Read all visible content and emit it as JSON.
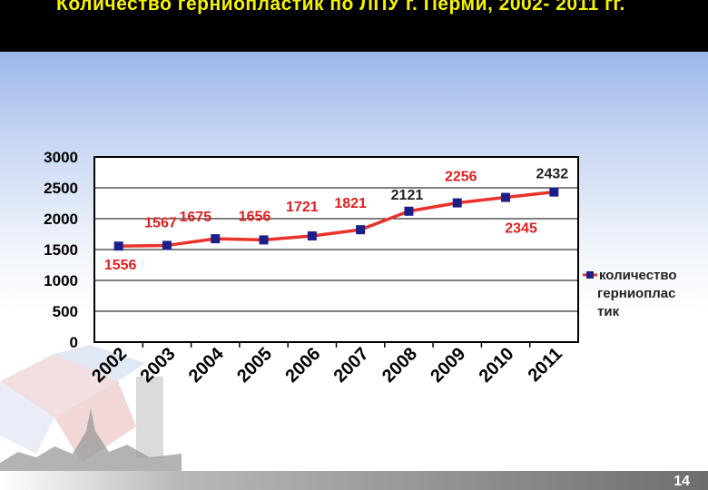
{
  "slide": {
    "title": "Количество герниопластик   по ЛПУ г. Перми, 2002- 2011 гг.",
    "page_number": "14",
    "accent_color": "#f5f200",
    "header_color": "#000000"
  },
  "chart_data": {
    "type": "line",
    "categories": [
      "2002",
      "2003",
      "2004",
      "2005",
      "2006",
      "2007",
      "2008",
      "2009",
      "2010",
      "2011"
    ],
    "series": [
      {
        "name": "количество герниопластик",
        "values": [
          1556,
          1567,
          1675,
          1656,
          1721,
          1821,
          2121,
          2256,
          2345,
          2432
        ],
        "line_color": "#e8322a",
        "marker_color": "#1a1f8a"
      }
    ],
    "data_labels": [
      {
        "text": "1556",
        "color": "#e02020"
      },
      {
        "text": "1567",
        "color": "#e02020"
      },
      {
        "text": "1675",
        "color": "#e02020"
      },
      {
        "text": "1656",
        "color": "#e02020"
      },
      {
        "text": "1721",
        "color": "#e02020"
      },
      {
        "text": "1821",
        "color": "#e02020"
      },
      {
        "text": "2121",
        "color": "#222222"
      },
      {
        "text": "2256",
        "color": "#e02020"
      },
      {
        "text": "2345",
        "color": "#e02020"
      },
      {
        "text": "2432",
        "color": "#222222"
      }
    ],
    "yticks": [
      "0",
      "500",
      "1000",
      "1500",
      "2000",
      "2500",
      "3000"
    ],
    "ylim": [
      0,
      3000
    ],
    "legend": {
      "position": "right",
      "lines": [
        "количество",
        "герниоплас",
        "тик"
      ]
    },
    "grid": true
  }
}
